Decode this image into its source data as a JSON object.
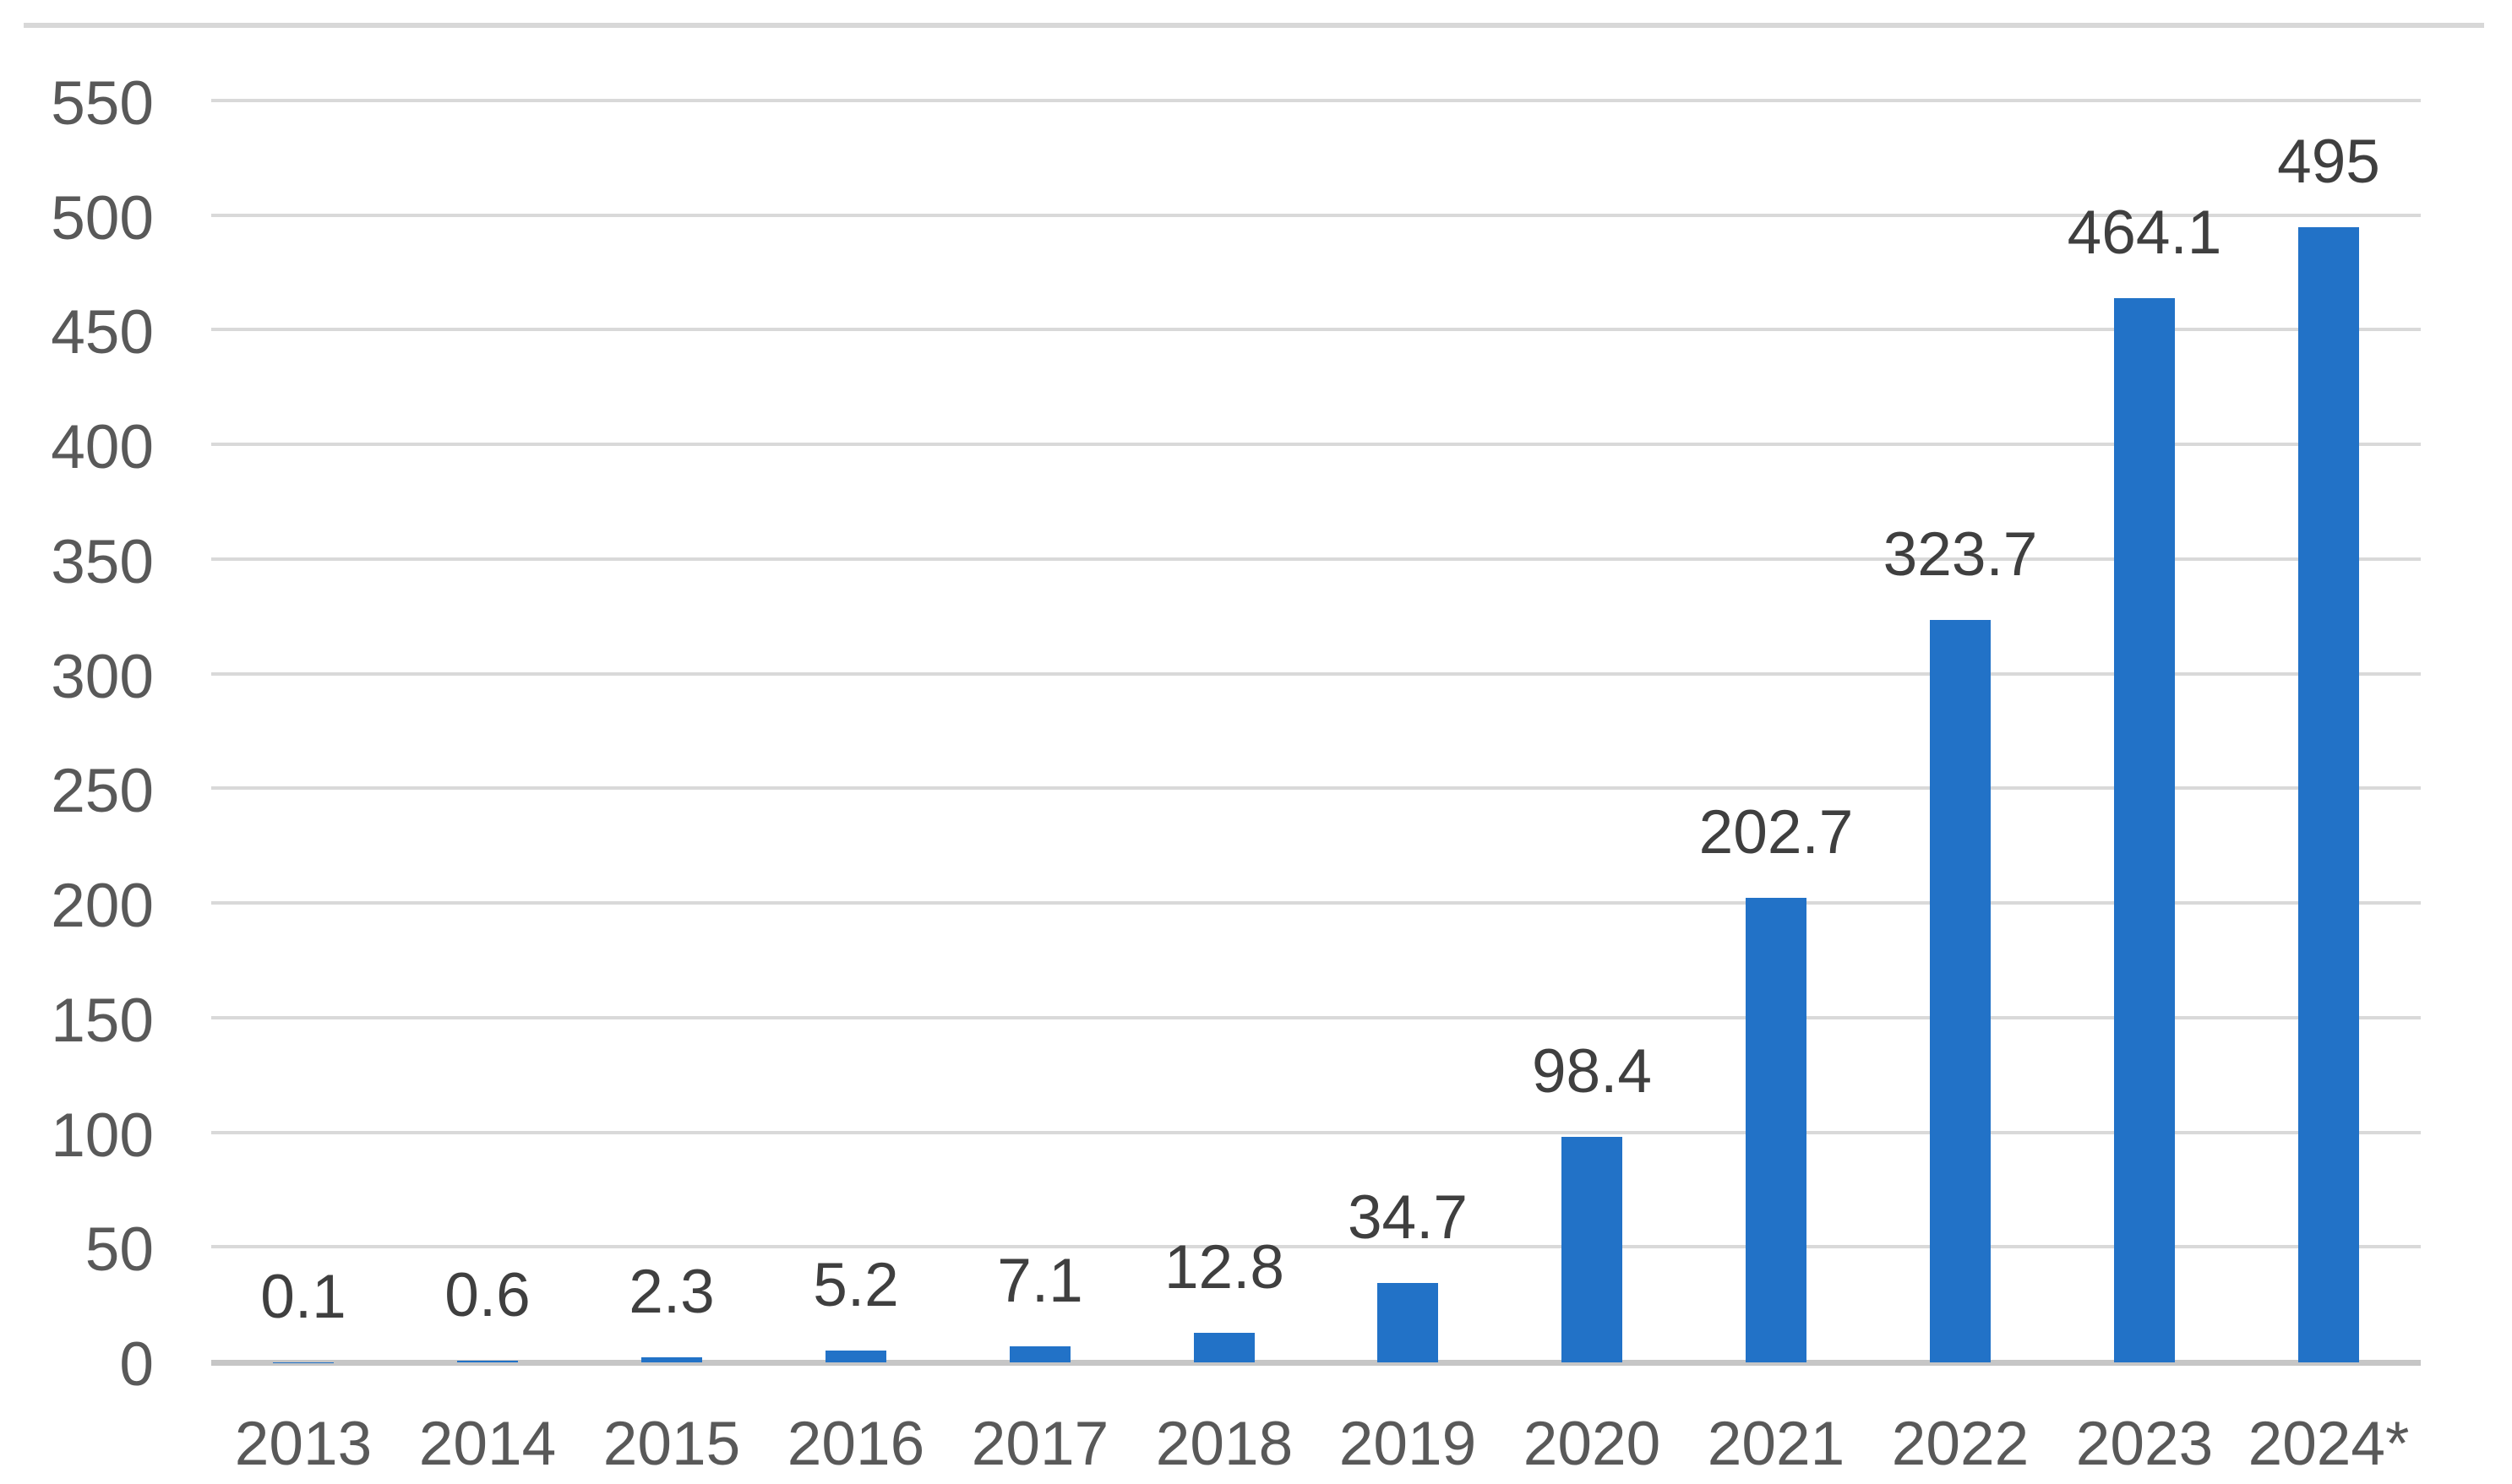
{
  "chart_data": {
    "type": "bar",
    "title": "",
    "xlabel": "",
    "ylabel": "",
    "categories": [
      "2013",
      "2014",
      "2015",
      "2016",
      "2017",
      "2018",
      "2019",
      "2020",
      "2021",
      "2022",
      "2023",
      "2024*"
    ],
    "values": [
      0.1,
      0.6,
      2.3,
      5.2,
      7.1,
      12.8,
      34.7,
      98.4,
      202.7,
      323.7,
      464.1,
      495
    ],
    "data_labels": [
      "0.1",
      "0.6",
      "2.3",
      "5.2",
      "7.1",
      "12.8",
      "34.7",
      "98.4",
      "202.7",
      "323.7",
      "464.1",
      "495"
    ],
    "ylim": [
      0,
      550
    ],
    "y_ticks": [
      0,
      50,
      100,
      150,
      200,
      250,
      300,
      350,
      400,
      450,
      500,
      550
    ],
    "y_tick_labels": [
      "0",
      "50",
      "100",
      "150",
      "200",
      "250",
      "300",
      "350",
      "400",
      "450",
      "500",
      "550"
    ],
    "grid": "horizontal",
    "legend": "none"
  },
  "colors": {
    "bar": "#2272C7",
    "gridline": "#D9D9D9",
    "axis_line": "#C6C6C6",
    "top_rule": "#D8D8D8",
    "axis_label": "#595959",
    "data_label": "#3F3F3F",
    "background": "#FFFFFF"
  }
}
